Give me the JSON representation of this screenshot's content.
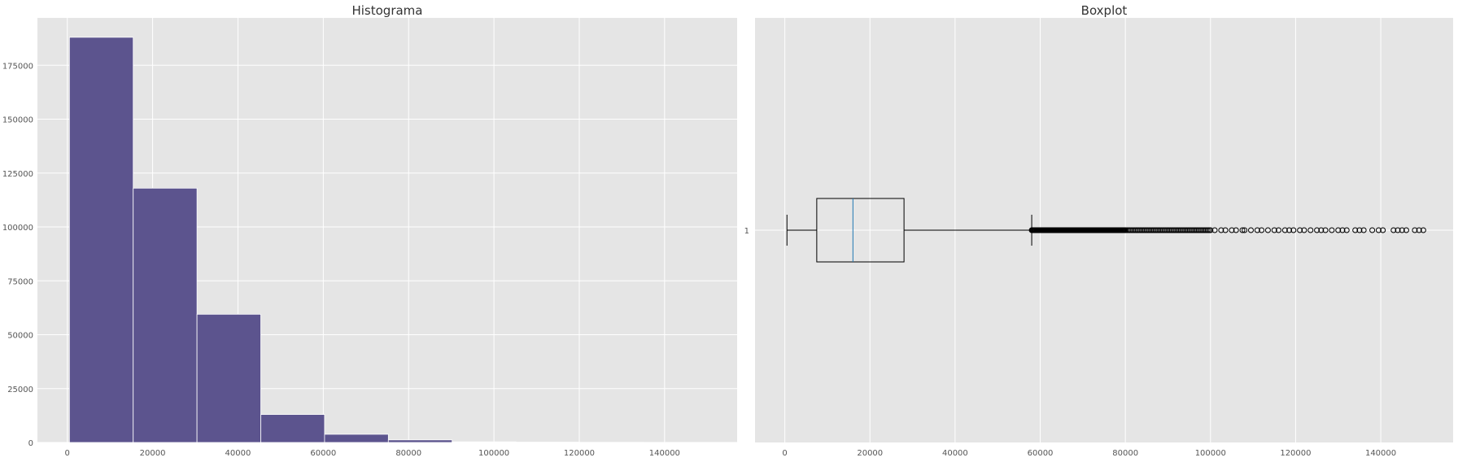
{
  "chart_data": [
    {
      "type": "bar",
      "title": "Histograma",
      "xlabel": "",
      "ylabel": "",
      "xlim": [
        -7000,
        157000
      ],
      "ylim": [
        0,
        197000
      ],
      "bin_edges": [
        500,
        15450,
        30400,
        45350,
        60300,
        75250,
        90200,
        105150,
        120100,
        135050,
        150000
      ],
      "values": [
        188000,
        118000,
        59500,
        13000,
        3800,
        1200,
        300,
        150,
        80,
        40
      ],
      "xticks": [
        0,
        20000,
        40000,
        60000,
        80000,
        100000,
        120000,
        140000
      ],
      "yticks": [
        0,
        25000,
        50000,
        75000,
        100000,
        125000,
        150000,
        175000
      ],
      "grid": true,
      "colors": {
        "bar": "#5c548e",
        "bar_edge": "#ffffff",
        "background": "#e5e5e5",
        "grid": "#ffffff"
      }
    },
    {
      "type": "boxplot",
      "title": "Boxplot",
      "orientation": "horizontal",
      "category": "1",
      "xlim": [
        -7000,
        157000
      ],
      "xticks": [
        0,
        20000,
        40000,
        60000,
        80000,
        100000,
        120000,
        140000
      ],
      "whisker_low": 500,
      "q1": 7500,
      "median": 16000,
      "q3": 28000,
      "whisker_high": 58000,
      "outliers_dense_range": [
        58000,
        100000
      ],
      "outliers": [
        101000,
        102500,
        103500,
        105000,
        106000,
        107500,
        108000,
        109500,
        111000,
        112000,
        113500,
        115000,
        116000,
        117500,
        118500,
        119500,
        121000,
        122000,
        123500,
        125000,
        126000,
        127000,
        128500,
        130000,
        131000,
        132000,
        134000,
        135000,
        136000,
        138000,
        139500,
        140500,
        143000,
        144000,
        145000,
        146000,
        148000,
        149000,
        150000
      ],
      "grid": true,
      "colors": {
        "box": "#000000",
        "median": "#1f77b4",
        "background": "#e5e5e5",
        "grid": "#ffffff"
      }
    }
  ]
}
